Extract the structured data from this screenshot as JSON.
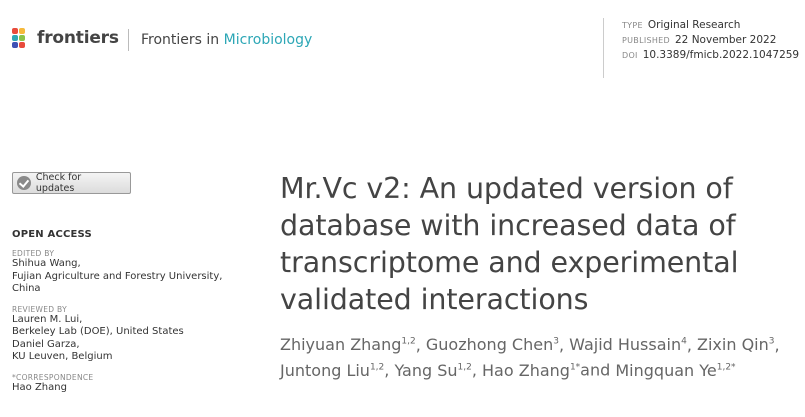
{
  "header": {
    "logo_text": "frontiers",
    "journal_prefix": "Frontiers in ",
    "journal_accent": "Microbiology",
    "accent_color": "#2da7b6",
    "meta": [
      {
        "key": "TYPE",
        "value": "Original Research"
      },
      {
        "key": "PUBLISHED",
        "value": "22 November 2022"
      },
      {
        "key": "DOI",
        "value": "10.3389/fmicb.2022.1047259"
      }
    ]
  },
  "sidebar": {
    "update_button": "Check for updates",
    "open_access": "OPEN ACCESS",
    "edited_by_label": "EDITED BY",
    "edited_by": [
      "Shihua Wang,",
      "Fujian Agriculture and Forestry University,",
      "China"
    ],
    "reviewed_by_label": "REVIEWED BY",
    "reviewed_by": [
      "Lauren M. Lui,",
      "Berkeley Lab (DOE), United States",
      "Daniel Garza,",
      "KU Leuven, Belgium"
    ],
    "correspondence_label": "*CORRESPONDENCE",
    "correspondence": "Hao Zhang"
  },
  "article": {
    "title": "Mr.Vc v2: An updated version of database with increased data of transcriptome and experimental validated interactions",
    "authors": [
      {
        "name": "Zhiyuan Zhang",
        "sup": "1,2",
        "sep": ", "
      },
      {
        "name": "Guozhong Chen",
        "sup": "3",
        "sep": ", "
      },
      {
        "name": "Wajid Hussain",
        "sup": "4",
        "sep": ", "
      },
      {
        "name": "Zixin Qin",
        "sup": "3",
        "sep": ", "
      },
      {
        "name": "Juntong Liu",
        "sup": "1,2",
        "sep": ", "
      },
      {
        "name": "Yang Su",
        "sup": "1,2",
        "sep": ", "
      },
      {
        "name": "Hao Zhang",
        "sup": "1*",
        "sep": "and "
      },
      {
        "name": "Mingquan Ye",
        "sup": "1,2*",
        "sep": ""
      }
    ]
  }
}
